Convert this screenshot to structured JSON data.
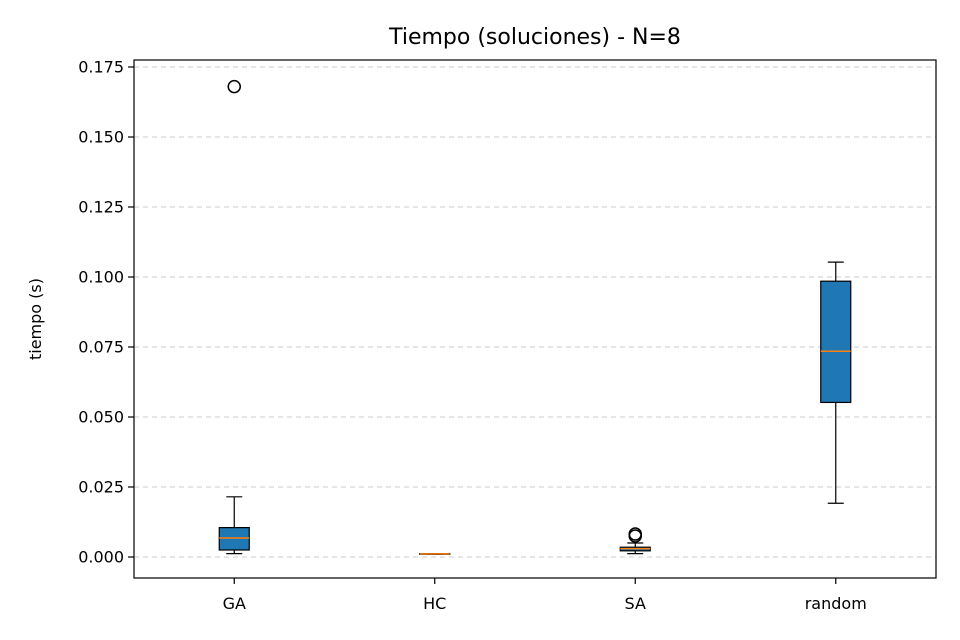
{
  "chart_data": {
    "type": "box",
    "title": "Tiempo (soluciones) - N=8",
    "xlabel": "",
    "ylabel": "tiempo (s)",
    "ylim": [
      -0.0075,
      0.1775
    ],
    "yticks": [
      0.0,
      0.025,
      0.05,
      0.075,
      0.1,
      0.125,
      0.15,
      0.175
    ],
    "ytick_labels": [
      "0.000",
      "0.025",
      "0.050",
      "0.075",
      "0.100",
      "0.125",
      "0.150",
      "0.175"
    ],
    "grid": "y-dashed",
    "categories": [
      "GA",
      "HC",
      "SA",
      "random"
    ],
    "boxes": [
      {
        "label": "GA",
        "whisker_low": 0.0012,
        "q1": 0.0025,
        "median": 0.0068,
        "q3": 0.0105,
        "whisker_high": 0.0215,
        "outliers": [
          0.168
        ]
      },
      {
        "label": "HC",
        "whisker_low": 0.001,
        "q1": 0.001,
        "median": 0.0011,
        "q3": 0.0012,
        "whisker_high": 0.0012,
        "outliers": []
      },
      {
        "label": "SA",
        "whisker_low": 0.0012,
        "q1": 0.0022,
        "median": 0.003,
        "q3": 0.0035,
        "whisker_high": 0.005,
        "outliers": [
          0.0075,
          0.0082
        ]
      },
      {
        "label": "random",
        "whisker_low": 0.0192,
        "q1": 0.0552,
        "median": 0.0735,
        "q3": 0.0985,
        "whisker_high": 0.1053,
        "outliers": []
      }
    ],
    "box_color": "#1f77b4",
    "median_color": "#ff7f0e",
    "edge_color": "#000000"
  }
}
